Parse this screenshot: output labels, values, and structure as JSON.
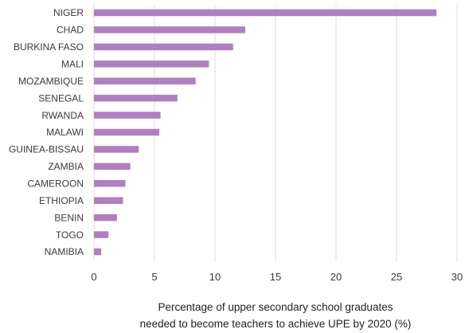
{
  "chart_data": {
    "type": "bar",
    "orientation": "horizontal",
    "categories": [
      "NIGER",
      "CHAD",
      "BURKINA FASO",
      "MALI",
      "MOZAMBIQUE",
      "SENEGAL",
      "RWANDA",
      "MALAWI",
      "GUINEA-BISSAU",
      "ZAMBIA",
      "CAMEROON",
      "ETHIOPIA",
      "BENIN",
      "TOGO",
      "NAMIBIA"
    ],
    "values": [
      28.3,
      12.5,
      11.5,
      9.5,
      8.4,
      6.9,
      5.5,
      5.4,
      3.7,
      3.0,
      2.6,
      2.4,
      1.9,
      1.2,
      0.6
    ],
    "xlim": [
      0,
      30
    ],
    "xticks": [
      "0",
      "5",
      "10",
      "15",
      "20",
      "25",
      "30"
    ],
    "xlabel_lines": [
      "Percentage of upper secondary school graduates",
      "needed to become teachers to achieve UPE by 2020 (%)"
    ],
    "title": "",
    "grid": "vertical",
    "bar_color": "#b07fc0",
    "grid_color": "#dcdcdc"
  }
}
